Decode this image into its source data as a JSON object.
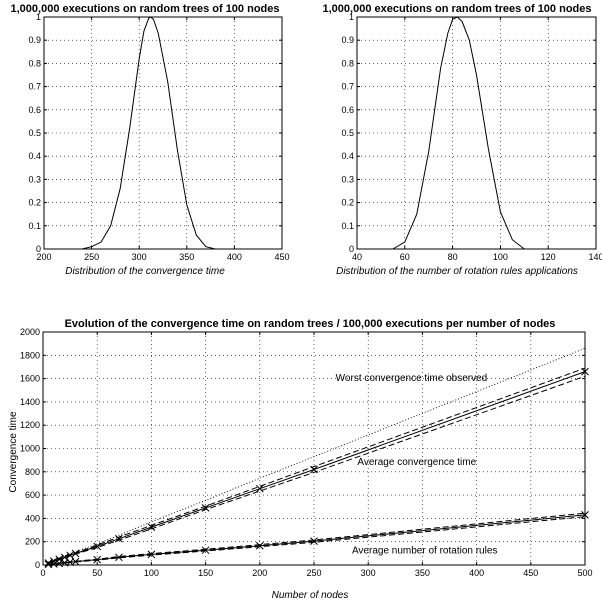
{
  "chart_data": [
    {
      "type": "line",
      "title": "1,000,000 executions on random trees of 100 nodes",
      "xlabel": "Distribution of the convergence time",
      "ylabel": "",
      "xlim": [
        200,
        450
      ],
      "ylim": [
        0,
        1
      ],
      "xticks": [
        200,
        250,
        300,
        350,
        400,
        450
      ],
      "yticks": [
        0,
        0.1,
        0.2,
        0.3,
        0.4,
        0.5,
        0.6,
        0.7,
        0.8,
        0.9,
        1
      ],
      "grid": true,
      "series": [
        {
          "x": [
            240,
            250,
            260,
            270,
            280,
            290,
            300,
            305,
            310,
            312,
            315,
            320,
            330,
            340,
            350,
            360,
            370,
            380
          ],
          "y": [
            0,
            0.01,
            0.03,
            0.1,
            0.26,
            0.52,
            0.82,
            0.94,
            0.995,
            1.0,
            0.99,
            0.93,
            0.72,
            0.43,
            0.19,
            0.06,
            0.01,
            0
          ],
          "color": "#000000"
        }
      ]
    },
    {
      "type": "line",
      "title": "1,000,000 executions on random trees of 100 nodes",
      "xlabel": "Distribution of the number of rotation rules applications",
      "ylabel": "",
      "xlim": [
        40,
        140
      ],
      "ylim": [
        0,
        1
      ],
      "xticks": [
        40,
        60,
        80,
        100,
        120,
        140
      ],
      "yticks": [
        0,
        0.1,
        0.2,
        0.3,
        0.4,
        0.5,
        0.6,
        0.7,
        0.8,
        0.9,
        1
      ],
      "grid": true,
      "series": [
        {
          "x": [
            55,
            60,
            65,
            70,
            75,
            78,
            80,
            82,
            84,
            87,
            90,
            95,
            100,
            105,
            110
          ],
          "y": [
            0,
            0.03,
            0.15,
            0.42,
            0.78,
            0.93,
            0.99,
            1.0,
            0.98,
            0.9,
            0.75,
            0.43,
            0.16,
            0.04,
            0
          ],
          "color": "#000000"
        }
      ]
    },
    {
      "type": "line",
      "title": "Evolution of the convergence time on random trees / 100,000 executions per number of nodes",
      "xlabel": "Number of nodes",
      "ylabel": "Convergence time",
      "xlim": [
        0,
        500
      ],
      "ylim": [
        0,
        2000
      ],
      "xticks": [
        0,
        50,
        100,
        150,
        200,
        250,
        300,
        350,
        400,
        450,
        500
      ],
      "yticks": [
        0,
        200,
        400,
        600,
        800,
        1000,
        1200,
        1400,
        1600,
        1800,
        2000
      ],
      "grid": true,
      "x": [
        5,
        10,
        15,
        20,
        25,
        30,
        50,
        70,
        100,
        150,
        200,
        250,
        500
      ],
      "series": [
        {
          "role": "worst",
          "style": "dotted",
          "values": [
            25,
            45,
            63,
            80,
            98,
            115,
            180,
            255,
            370,
            555,
            745,
            930,
            1860
          ]
        },
        {
          "role": "average-upper",
          "style": "dashed",
          "values": [
            20,
            40,
            57,
            73,
            90,
            105,
            170,
            240,
            340,
            505,
            675,
            845,
            1690
          ]
        },
        {
          "role": "average",
          "style": "solid",
          "values": [
            17,
            33,
            50,
            66,
            83,
            99,
            160,
            225,
            325,
            490,
            655,
            820,
            1660
          ],
          "marker": "x"
        },
        {
          "role": "average-lower",
          "style": "dashed",
          "values": [
            14,
            28,
            45,
            60,
            77,
            93,
            150,
            212,
            310,
            475,
            635,
            795,
            1620
          ]
        },
        {
          "role": "rotations-upper",
          "style": "dashed",
          "values": [
            6,
            11,
            16,
            22,
            27,
            32,
            50,
            73,
            98,
            135,
            175,
            215,
            445
          ]
        },
        {
          "role": "rotations",
          "style": "solid",
          "values": [
            5,
            9,
            14,
            19,
            24,
            29,
            46,
            66,
            91,
            127,
            165,
            205,
            430
          ],
          "marker": "x"
        },
        {
          "role": "rotations-lower",
          "style": "dashed",
          "values": [
            4,
            8,
            12,
            17,
            21,
            26,
            42,
            61,
            85,
            120,
            157,
            195,
            415
          ]
        }
      ],
      "annotations": [
        {
          "text": "Worst convergence time observed",
          "x": 270,
          "y": 1580
        },
        {
          "text": "Average convergence time",
          "x": 290,
          "y": 860
        },
        {
          "text": "Average number of rotation rules",
          "x": 285,
          "y": 100
        }
      ]
    }
  ]
}
